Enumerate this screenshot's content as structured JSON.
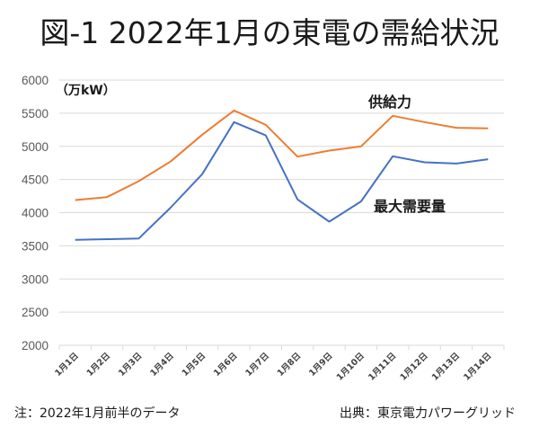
{
  "page_title": "図-1 2022年1月の東電の需給状況",
  "note_left": "注：2022年1月前半のデータ",
  "note_right": "出典：東京電力パワーグリッド",
  "chart_data": {
    "type": "line",
    "title": "図-1 2022年1月の東電の需給状況",
    "ylabel": "（万kW）",
    "xlabel": "",
    "ylim": [
      2000,
      6000
    ],
    "yticks": [
      2000,
      2500,
      3000,
      3500,
      4000,
      4500,
      5000,
      5500,
      6000
    ],
    "grid": true,
    "categories": [
      "1月1日",
      "1月2日",
      "1月3日",
      "1月4日",
      "1月5日",
      "1月6日",
      "1月7日",
      "1月8日",
      "1月9日",
      "1月10日",
      "1月11日",
      "1月12日",
      "1月13日",
      "1月14日"
    ],
    "series": [
      {
        "name": "供給力",
        "color": "#ED7D31",
        "values": [
          4190,
          4235,
          4475,
          4770,
          5175,
          5540,
          5325,
          4845,
          4935,
          5000,
          5460,
          5365,
          5280,
          5270
        ]
      },
      {
        "name": "最大需要量",
        "color": "#4472C4",
        "values": [
          3590,
          3600,
          3610,
          4075,
          4580,
          5365,
          5165,
          4200,
          3865,
          4170,
          4850,
          4760,
          4740,
          4805
        ]
      }
    ],
    "annotations": [
      "供給力",
      "最大需要量"
    ],
    "legend": "none"
  }
}
